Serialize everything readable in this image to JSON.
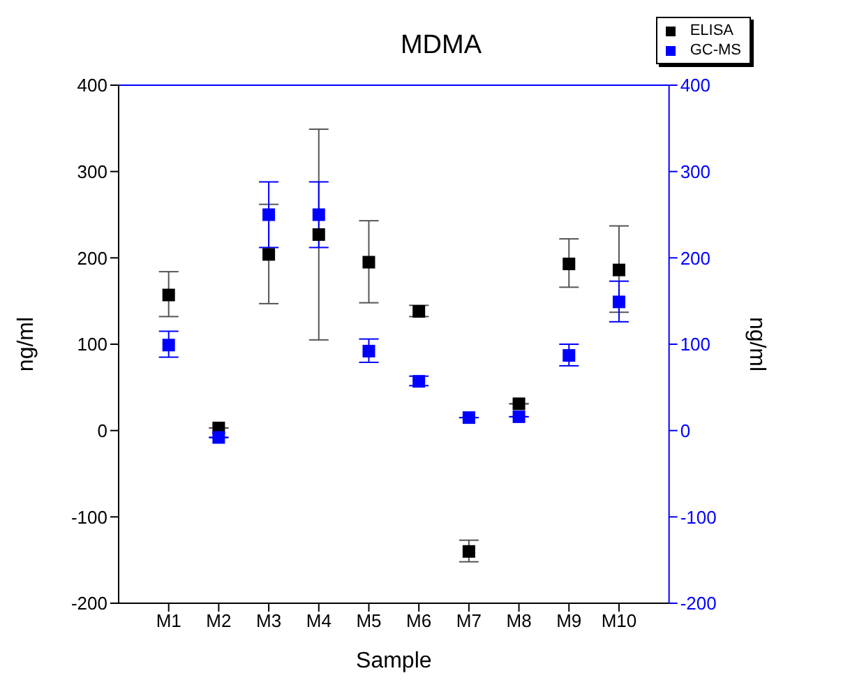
{
  "chart_data": {
    "type": "scatter",
    "title": "MDMA",
    "xlabel": "Sample",
    "ylabel": "ng/ml",
    "y2label": "ng/ml",
    "categories": [
      "M1",
      "M2",
      "M3",
      "M4",
      "M5",
      "M6",
      "M7",
      "M8",
      "M9",
      "M10"
    ],
    "series": [
      {
        "name": "ELISA",
        "color": "#000000",
        "values": [
          157,
          3,
          204,
          227,
          195,
          138,
          -140,
          31,
          193,
          186
        ],
        "errors": [
          [
            132,
            184
          ],
          null,
          [
            147,
            262
          ],
          [
            105,
            349
          ],
          [
            148,
            243
          ],
          [
            132,
            145
          ],
          [
            -152,
            -127
          ],
          null,
          [
            166,
            222
          ],
          [
            137,
            237
          ]
        ]
      },
      {
        "name": "GC-MS",
        "color": "#0000ff",
        "axis": "y2",
        "values": [
          99,
          -8,
          250,
          250,
          92,
          57,
          15,
          16,
          87,
          149
        ],
        "errors": [
          [
            85,
            115
          ],
          null,
          [
            212,
            288
          ],
          [
            212,
            288
          ],
          [
            79,
            106
          ],
          [
            52,
            63
          ],
          null,
          null,
          [
            75,
            100
          ],
          [
            126,
            173
          ]
        ]
      }
    ],
    "ylim": [
      -200,
      400
    ],
    "yticks": [
      -200,
      -100,
      0,
      100,
      200,
      300,
      400
    ],
    "y2lim": [
      -200,
      400
    ],
    "y2ticks": [
      -200,
      -100,
      0,
      100,
      200,
      300,
      400
    ],
    "marker": "square",
    "legend": "top right"
  }
}
